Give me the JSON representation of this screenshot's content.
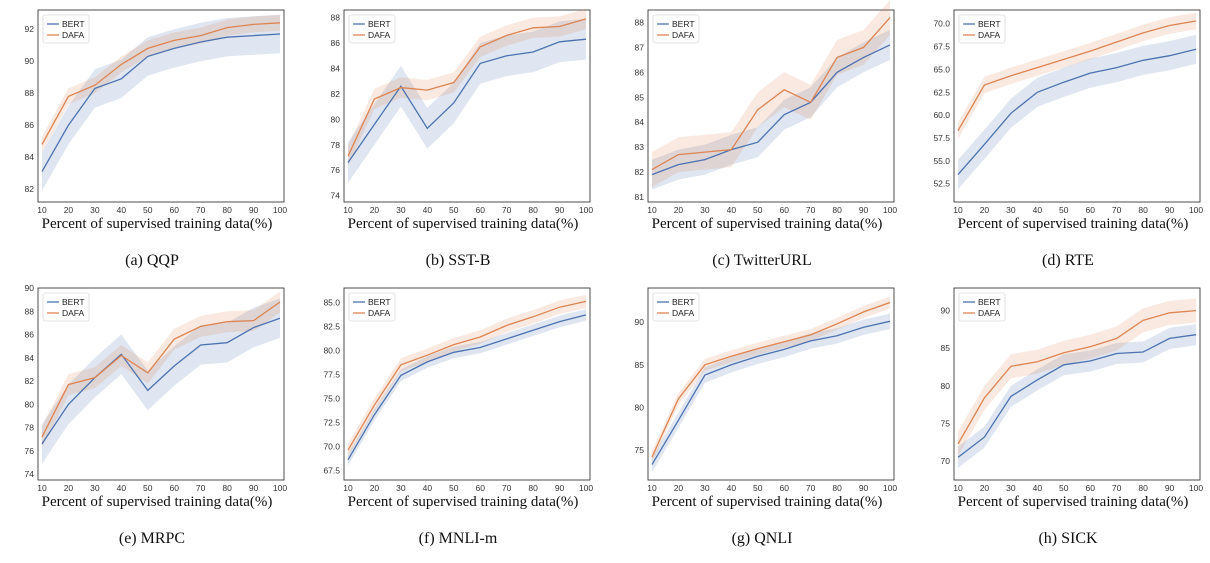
{
  "colors": {
    "bert": "#4c72b0",
    "dafa": "#dd8452"
  },
  "xlabel_text": "Percent of  supervised training data(%)",
  "legend": [
    "BERT",
    "DAFA"
  ],
  "chart_data": [
    {
      "type": "line",
      "caption": "(a) QQP",
      "xlabel": "Percent of  supervised training data(%)",
      "x": [
        10,
        20,
        30,
        40,
        50,
        60,
        70,
        80,
        90,
        100
      ],
      "ylim": [
        81.2,
        93.2
      ],
      "yticks": [
        82,
        84,
        86,
        88,
        90,
        92
      ],
      "ytick_labels": [
        "82",
        "84",
        "86",
        "88",
        "90",
        "92"
      ],
      "series": [
        {
          "name": "BERT",
          "values": [
            83.1,
            86.0,
            88.3,
            88.9,
            90.3,
            90.8,
            91.2,
            91.5,
            91.6,
            91.7
          ],
          "band": 1.2
        },
        {
          "name": "DAFA",
          "values": [
            84.8,
            87.8,
            88.5,
            89.8,
            90.8,
            91.3,
            91.6,
            92.1,
            92.3,
            92.4
          ],
          "band": 0.5
        }
      ]
    },
    {
      "type": "line",
      "caption": "(b) SST-B",
      "xlabel": "Percent of  supervised training data(%)",
      "x": [
        10,
        20,
        30,
        40,
        50,
        60,
        70,
        80,
        90,
        100
      ],
      "ylim": [
        73.5,
        88.6
      ],
      "yticks": [
        74,
        76,
        78,
        80,
        82,
        84,
        86,
        88
      ],
      "ytick_labels": [
        "74",
        "76",
        "78",
        "80",
        "82",
        "84",
        "86",
        "88"
      ],
      "series": [
        {
          "name": "BERT",
          "values": [
            76.6,
            79.6,
            82.6,
            79.3,
            81.3,
            84.4,
            85.0,
            85.3,
            86.1,
            86.3
          ],
          "band": 1.6
        },
        {
          "name": "DAFA",
          "values": [
            77.1,
            81.6,
            82.5,
            82.3,
            82.9,
            85.7,
            86.6,
            87.2,
            87.3,
            87.9
          ],
          "band": 0.8
        }
      ]
    },
    {
      "type": "line",
      "caption": "(c) TwitterURL",
      "xlabel": "Percent of  supervised training data(%)",
      "x": [
        10,
        20,
        30,
        40,
        50,
        60,
        70,
        80,
        90,
        100
      ],
      "ylim": [
        80.8,
        88.5
      ],
      "yticks": [
        81,
        82,
        83,
        84,
        85,
        86,
        87,
        88
      ],
      "ytick_labels": [
        "81",
        "82",
        "83",
        "84",
        "85",
        "86",
        "87",
        "88"
      ],
      "series": [
        {
          "name": "BERT",
          "values": [
            81.9,
            82.3,
            82.5,
            82.9,
            83.2,
            84.3,
            84.8,
            86.0,
            86.6,
            87.1
          ],
          "band": 0.6
        },
        {
          "name": "DAFA",
          "values": [
            82.1,
            82.7,
            82.8,
            82.9,
            84.5,
            85.3,
            84.8,
            86.6,
            87.0,
            88.2
          ],
          "band": 0.7
        }
      ]
    },
    {
      "type": "line",
      "caption": "(d) RTE",
      "xlabel": "Percent of  supervised training data(%)",
      "x": [
        10,
        20,
        30,
        40,
        50,
        60,
        70,
        80,
        90,
        100
      ],
      "ylim": [
        50.5,
        71.5
      ],
      "yticks": [
        52.5,
        55,
        57.5,
        60,
        62.5,
        65,
        67.5,
        70
      ],
      "ytick_labels": [
        "52.5",
        "55.0",
        "57.5",
        "60.0",
        "62.5",
        "65.0",
        "67.5",
        "70.0"
      ],
      "series": [
        {
          "name": "BERT",
          "values": [
            53.5,
            56.8,
            60.2,
            62.5,
            63.6,
            64.6,
            65.2,
            66.0,
            66.5,
            67.2
          ],
          "band": 1.6
        },
        {
          "name": "DAFA",
          "values": [
            58.3,
            63.3,
            64.3,
            65.2,
            66.1,
            67.0,
            68.0,
            69.0,
            69.8,
            70.3
          ],
          "band": 0.9
        }
      ]
    },
    {
      "type": "line",
      "caption": "(e) MRPC",
      "xlabel": "Percent of  supervised training data(%)",
      "x": [
        10,
        20,
        30,
        40,
        50,
        60,
        70,
        80,
        90,
        100
      ],
      "ylim": [
        73.5,
        90.0
      ],
      "yticks": [
        74,
        76,
        78,
        80,
        82,
        84,
        86,
        88,
        90
      ],
      "ytick_labels": [
        "74",
        "76",
        "78",
        "80",
        "82",
        "84",
        "86",
        "88",
        "90"
      ],
      "series": [
        {
          "name": "BERT",
          "values": [
            76.6,
            80.0,
            82.3,
            84.3,
            81.2,
            83.3,
            85.1,
            85.3,
            86.6,
            87.4
          ],
          "band": 1.7
        },
        {
          "name": "DAFA",
          "values": [
            77.2,
            81.7,
            82.3,
            84.2,
            82.7,
            85.6,
            86.7,
            87.1,
            87.2,
            88.8
          ],
          "band": 0.9
        }
      ]
    },
    {
      "type": "line",
      "caption": "(f) MNLI-m",
      "xlabel": "Percent of  supervised training data(%)",
      "x": [
        10,
        20,
        30,
        40,
        50,
        60,
        70,
        80,
        90,
        100
      ],
      "ylim": [
        66.5,
        86.5
      ],
      "yticks": [
        67.5,
        70,
        72.5,
        75,
        77.5,
        80,
        82.5,
        85
      ],
      "ytick_labels": [
        "67.5",
        "70.0",
        "72.5",
        "75.0",
        "77.5",
        "80.0",
        "82.5",
        "85.0"
      ],
      "series": [
        {
          "name": "BERT",
          "values": [
            68.6,
            73.3,
            77.4,
            78.8,
            79.8,
            80.3,
            81.2,
            82.1,
            83.0,
            83.7
          ],
          "band": 0.6
        },
        {
          "name": "DAFA",
          "values": [
            69.6,
            74.3,
            78.5,
            79.5,
            80.6,
            81.4,
            82.6,
            83.5,
            84.5,
            85.1
          ],
          "band": 0.7
        }
      ]
    },
    {
      "type": "line",
      "caption": "(g) QNLI",
      "xlabel": "Percent of  supervised training data(%)",
      "x": [
        10,
        20,
        30,
        40,
        50,
        60,
        70,
        80,
        90,
        100
      ],
      "ylim": [
        71.5,
        94.0
      ],
      "yticks": [
        75,
        80,
        85,
        90
      ],
      "ytick_labels": [
        "75",
        "80",
        "85",
        "90"
      ],
      "series": [
        {
          "name": "BERT",
          "values": [
            73.3,
            78.5,
            83.8,
            85.0,
            86.0,
            86.8,
            87.8,
            88.4,
            89.4,
            90.1
          ],
          "band": 0.9
        },
        {
          "name": "DAFA",
          "values": [
            74.2,
            81.0,
            85.0,
            86.0,
            86.9,
            87.7,
            88.5,
            89.8,
            91.2,
            92.3
          ],
          "band": 0.7
        }
      ]
    },
    {
      "type": "line",
      "caption": "(h) SICK",
      "xlabel": "Percent of  supervised training data(%)",
      "x": [
        10,
        20,
        30,
        40,
        50,
        60,
        70,
        80,
        90,
        100
      ],
      "ylim": [
        67.5,
        93.0
      ],
      "yticks": [
        70,
        75,
        80,
        85,
        90
      ],
      "ytick_labels": [
        "70",
        "75",
        "80",
        "85",
        "90"
      ],
      "series": [
        {
          "name": "BERT",
          "values": [
            70.5,
            73.2,
            78.6,
            80.8,
            82.8,
            83.3,
            84.3,
            84.5,
            86.3,
            86.8
          ],
          "band": 1.4
        },
        {
          "name": "DAFA",
          "values": [
            72.3,
            78.4,
            82.6,
            83.2,
            84.4,
            85.2,
            86.3,
            88.7,
            89.7,
            90.0
          ],
          "band": 1.6
        }
      ]
    }
  ]
}
